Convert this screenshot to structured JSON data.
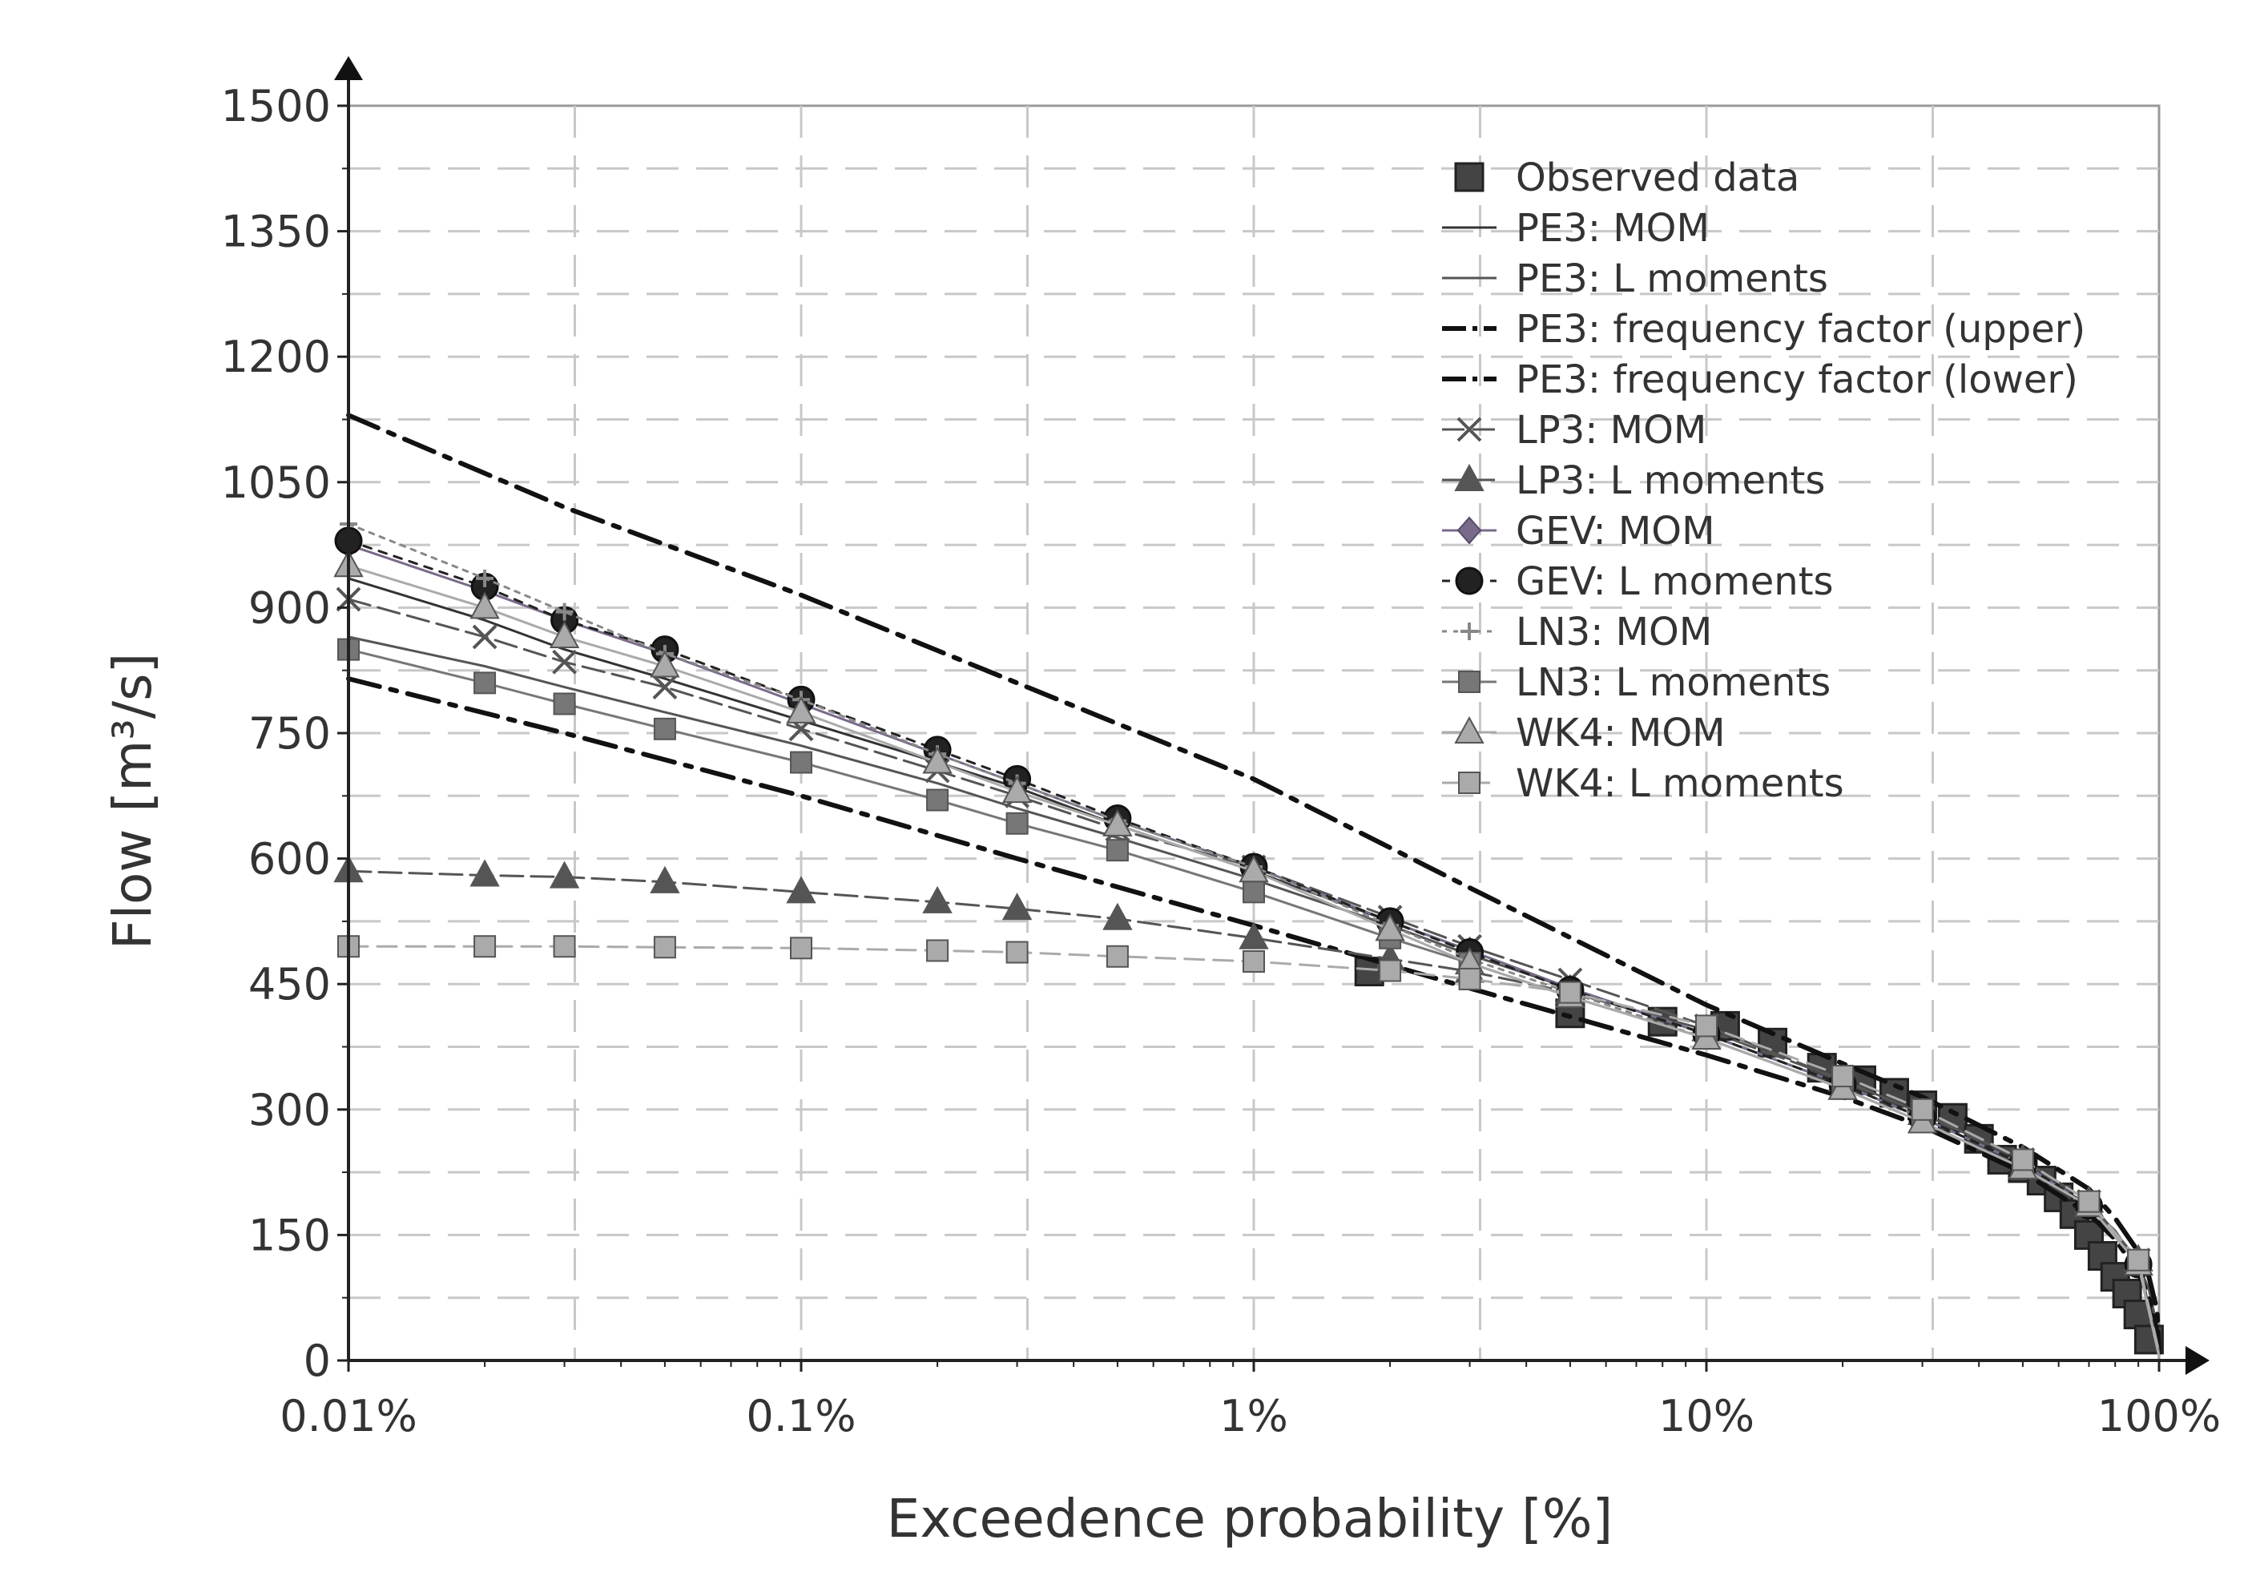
{
  "chart_data": {
    "type": "line",
    "title": "",
    "xlabel": "Exceedence probability [%]",
    "ylabel": "Flow [m³/s]",
    "xscale": "log",
    "xlim": [
      0.01,
      100
    ],
    "ylim": [
      0,
      1500
    ],
    "xticks": [
      0.01,
      0.1,
      1,
      10,
      100
    ],
    "xtick_labels": [
      "0.01%",
      "0.1%",
      "1%",
      "10%",
      "100%"
    ],
    "yticks": [
      0,
      150,
      300,
      450,
      600,
      750,
      900,
      1050,
      1200,
      1350,
      1500
    ],
    "ytick_labels": [
      "0",
      "150",
      "300",
      "450",
      "600",
      "750",
      "900",
      "1050",
      "1200",
      "1350",
      "1500"
    ],
    "grid": true,
    "legend_position": "top-right",
    "series": [
      {
        "name": "Observed data",
        "color": "#444444",
        "stroke": 0,
        "dash": "none",
        "marker": "square-big",
        "markerColor": "#444444",
        "legend_line": false,
        "x": [
          1.8,
          5,
          8,
          11,
          14,
          18,
          22,
          26,
          30,
          35,
          40,
          45,
          50,
          55,
          60,
          65,
          70,
          75,
          80,
          85,
          90,
          95
        ],
        "y": [
          465,
          415,
          405,
          400,
          380,
          350,
          335,
          320,
          305,
          290,
          265,
          240,
          230,
          215,
          195,
          175,
          150,
          125,
          100,
          80,
          55,
          25
        ]
      },
      {
        "name": "PE3: MOM",
        "color": "#333333",
        "stroke": 3,
        "dash": "none",
        "marker": "none",
        "x": [
          0.01,
          0.02,
          0.03,
          0.05,
          0.1,
          0.2,
          0.3,
          0.5,
          1,
          2,
          3,
          5,
          10,
          20,
          30,
          50,
          70,
          80,
          90,
          95,
          99,
          100
        ],
        "y": [
          935,
          885,
          850,
          815,
          765,
          715,
          685,
          640,
          585,
          525,
          490,
          445,
          390,
          330,
          290,
          235,
          185,
          155,
          115,
          85,
          40,
          5
        ]
      },
      {
        "name": "PE3: L moments",
        "color": "#555555",
        "stroke": 3,
        "dash": "none",
        "marker": "none",
        "x": [
          0.01,
          0.02,
          0.03,
          0.05,
          0.1,
          0.2,
          0.3,
          0.5,
          1,
          2,
          3,
          5,
          10,
          20,
          30,
          50,
          70,
          80,
          90,
          95,
          99,
          100
        ],
        "y": [
          865,
          830,
          805,
          775,
          735,
          690,
          660,
          625,
          575,
          520,
          485,
          445,
          390,
          330,
          290,
          235,
          185,
          155,
          115,
          85,
          40,
          5
        ]
      },
      {
        "name": "PE3: frequency factor (upper)",
        "color": "#111111",
        "stroke": 6,
        "dash": "40,14,8,14",
        "marker": "none",
        "x": [
          0.01,
          0.03,
          0.1,
          0.3,
          1,
          3,
          10,
          20,
          30,
          50,
          70,
          80,
          90,
          95,
          99,
          100
        ],
        "y": [
          1130,
          1020,
          915,
          810,
          695,
          565,
          425,
          355,
          315,
          255,
          205,
          170,
          130,
          100,
          60,
          10
        ]
      },
      {
        "name": "PE3: frequency factor (lower)",
        "color": "#111111",
        "stroke": 6,
        "dash": "40,14,8,14",
        "marker": "none",
        "x": [
          0.01,
          0.03,
          0.1,
          0.3,
          1,
          3,
          10,
          20,
          30,
          50,
          70,
          80,
          90,
          95,
          99,
          100
        ],
        "y": [
          815,
          750,
          675,
          600,
          520,
          445,
          365,
          315,
          280,
          225,
          175,
          145,
          105,
          75,
          35,
          5
        ]
      },
      {
        "name": "LP3: MOM",
        "color": "#555555",
        "stroke": 3,
        "dash": "28,10",
        "marker": "x",
        "x": [
          0.01,
          0.02,
          0.03,
          0.05,
          0.1,
          0.2,
          0.3,
          0.5,
          1,
          2,
          3,
          5,
          10,
          20,
          30,
          50,
          70,
          90,
          100
        ],
        "y": [
          910,
          865,
          835,
          805,
          755,
          705,
          675,
          635,
          590,
          530,
          495,
          455,
          400,
          335,
          295,
          240,
          190,
          120,
          10
        ]
      },
      {
        "name": "LP3: L moments",
        "color": "#555555",
        "stroke": 3,
        "dash": "28,10",
        "marker": "triangle",
        "x": [
          0.01,
          0.02,
          0.03,
          0.05,
          0.1,
          0.2,
          0.3,
          0.5,
          1,
          2,
          3,
          5,
          10,
          20,
          30,
          50,
          70,
          90,
          100
        ],
        "y": [
          585,
          580,
          578,
          572,
          560,
          548,
          540,
          528,
          505,
          480,
          465,
          440,
          395,
          335,
          295,
          240,
          190,
          120,
          10
        ]
      },
      {
        "name": "GEV: MOM",
        "color": "#7a6a8a",
        "stroke": 3,
        "dash": "none",
        "marker": "diamond",
        "x": [
          0.01,
          0.02,
          0.03,
          0.05,
          0.1,
          0.2,
          0.3,
          0.5,
          1,
          2,
          3,
          5,
          10,
          20,
          30,
          50,
          70,
          90,
          100
        ],
        "y": [
          975,
          920,
          885,
          845,
          785,
          725,
          690,
          645,
          590,
          525,
          490,
          445,
          390,
          330,
          290,
          235,
          185,
          115,
          5
        ]
      },
      {
        "name": "GEV: L moments",
        "color": "#222222",
        "stroke": 3,
        "dash": "10,10",
        "marker": "circle",
        "x": [
          0.01,
          0.02,
          0.03,
          0.05,
          0.1,
          0.2,
          0.3,
          0.5,
          1,
          2,
          3,
          5,
          10,
          20,
          30,
          50,
          70,
          90,
          100
        ],
        "y": [
          980,
          925,
          885,
          850,
          790,
          730,
          695,
          648,
          590,
          525,
          488,
          443,
          390,
          330,
          290,
          235,
          185,
          115,
          5
        ]
      },
      {
        "name": "LN3: MOM",
        "color": "#888888",
        "stroke": 3,
        "dash": "6,8",
        "marker": "plus",
        "x": [
          0.01,
          0.02,
          0.03,
          0.05,
          0.1,
          0.2,
          0.3,
          0.5,
          1,
          2,
          3,
          5,
          10,
          20,
          30,
          50,
          70,
          90,
          100
        ],
        "y": [
          1000,
          935,
          895,
          845,
          790,
          725,
          690,
          645,
          590,
          520,
          480,
          440,
          385,
          325,
          285,
          230,
          185,
          115,
          5
        ]
      },
      {
        "name": "LN3: L moments",
        "color": "#777777",
        "stroke": 3,
        "dash": "none",
        "marker": "square",
        "x": [
          0.01,
          0.02,
          0.03,
          0.05,
          0.1,
          0.2,
          0.3,
          0.5,
          1,
          2,
          3,
          5,
          10,
          20,
          30,
          50,
          70,
          90,
          100
        ],
        "y": [
          850,
          810,
          785,
          755,
          715,
          670,
          642,
          610,
          560,
          505,
          475,
          435,
          385,
          325,
          285,
          230,
          185,
          115,
          5
        ]
      },
      {
        "name": "WK4: MOM",
        "color": "#aaaaaa",
        "stroke": 3,
        "dash": "none",
        "marker": "triangle",
        "x": [
          0.01,
          0.02,
          0.03,
          0.05,
          0.1,
          0.2,
          0.3,
          0.5,
          1,
          2,
          3,
          5,
          10,
          20,
          30,
          50,
          70,
          90,
          100
        ],
        "y": [
          950,
          900,
          865,
          830,
          775,
          715,
          680,
          640,
          585,
          515,
          475,
          435,
          385,
          325,
          285,
          230,
          185,
          115,
          5
        ]
      },
      {
        "name": "WK4: L moments",
        "color": "#aaaaaa",
        "stroke": 3,
        "dash": "24,12",
        "marker": "square",
        "x": [
          0.01,
          0.02,
          0.03,
          0.05,
          0.1,
          0.2,
          0.3,
          0.5,
          1,
          2,
          3,
          5,
          10,
          20,
          30,
          50,
          70,
          90,
          100
        ],
        "y": [
          495,
          495,
          495,
          494,
          493,
          490,
          488,
          483,
          477,
          466,
          456,
          440,
          400,
          340,
          300,
          240,
          190,
          120,
          10
        ]
      }
    ]
  }
}
